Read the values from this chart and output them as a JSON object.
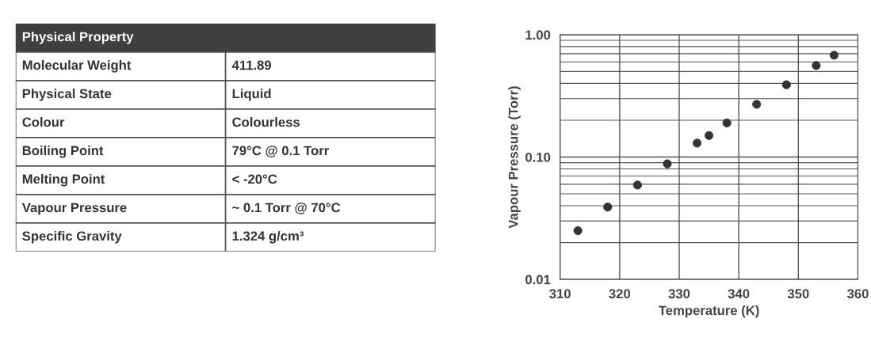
{
  "chart_data": [
    {
      "type": "other",
      "title": "Physical Property",
      "annotations": [
        "Molecular Weight",
        "411.89",
        "Physical State",
        "Liquid",
        "Colour",
        "Colourless",
        "Boiling Point",
        "79°C @ 0.1 Torr",
        "Melting Point",
        "< -20°C",
        "Vapour Pressure",
        "~ 0.1 Torr @ 70°C",
        "Specific Gravity",
        "1.324 g/cm³"
      ]
    },
    {
      "type": "scatter",
      "xlabel": "Temperature (K)",
      "ylabel": "Vapour Pressure (Torr)",
      "log": "y",
      "grid": true,
      "marker": "circle",
      "xlim": [
        310,
        360
      ],
      "xticks": [
        310,
        320,
        330,
        340,
        350,
        360
      ],
      "ylim": [
        0.01,
        1
      ],
      "yticks": [
        {
          "value": 0.01,
          "label": "0.01"
        },
        {
          "value": 0.1,
          "label": "0.10"
        },
        {
          "value": 1,
          "label": "1.00"
        }
      ],
      "series": [
        {
          "color": "#333333",
          "x": [
            313,
            318,
            323,
            328,
            333,
            335,
            338,
            343,
            348,
            353,
            356
          ],
          "values": [
            0.025,
            0.039,
            0.059,
            0.088,
            0.13,
            0.15,
            0.19,
            0.27,
            0.39,
            0.56,
            0.68
          ]
        }
      ]
    }
  ]
}
